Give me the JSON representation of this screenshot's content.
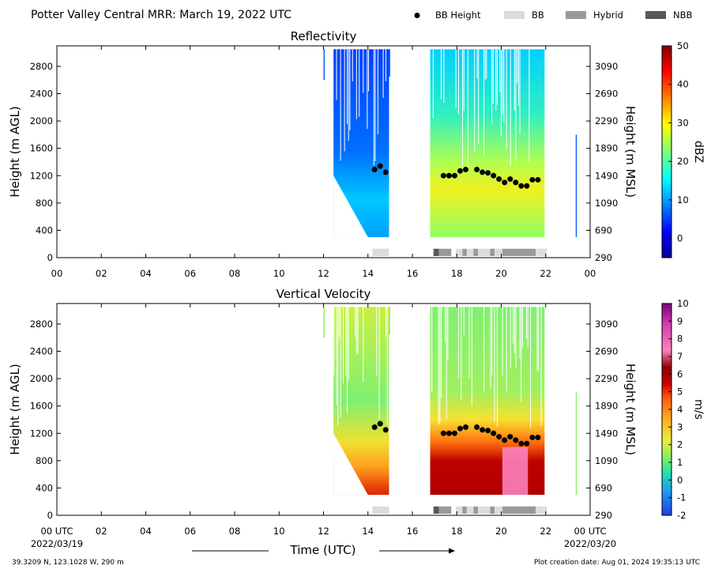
{
  "header": {
    "title": "Potter Valley Central MRR:  March 19, 2022 UTC",
    "legend": [
      {
        "label": "BB Height",
        "kind": "dot",
        "color": "#000000"
      },
      {
        "label": "BB",
        "kind": "bar",
        "color": "#dcdcdc"
      },
      {
        "label": "Hybrid",
        "kind": "bar",
        "color": "#999999"
      },
      {
        "label": "NBB",
        "kind": "bar",
        "color": "#595959"
      }
    ]
  },
  "footer": {
    "location": "39.3209 N, 123.1028 W, 290 m",
    "created": "Plot creation date: Aug 01, 2024 19:35:13 UTC",
    "xlabel": "Time (UTC)",
    "start_tick": "00 UTC",
    "start_date": "2022/03/19",
    "end_tick": "00 UTC",
    "end_date": "2022/03/20"
  },
  "chart_data": [
    {
      "type": "heatmap",
      "title": "Reflectivity",
      "ylabel": "Height (m AGL)",
      "ylabel_right": "Height (m MSL)",
      "xlim": [
        0,
        24
      ],
      "ylim": [
        0,
        3100
      ],
      "x_ticks": [
        "00",
        "02",
        "04",
        "06",
        "08",
        "10",
        "12",
        "14",
        "16",
        "18",
        "20",
        "22",
        "00"
      ],
      "y_ticks": [
        0,
        400,
        800,
        1200,
        1600,
        2000,
        2400,
        2800
      ],
      "y_ticks_right": [
        290,
        690,
        1090,
        1490,
        1890,
        2290,
        2690,
        3090
      ],
      "colorbar": {
        "label": "dBZ",
        "min": -5,
        "max": 50,
        "ticks": [
          0,
          10,
          20,
          30,
          40,
          50
        ],
        "colormap": "jet"
      },
      "bb_height": {
        "x": [
          14.3,
          14.55,
          14.8,
          17.4,
          17.65,
          17.9,
          18.15,
          18.4,
          18.9,
          19.15,
          19.4,
          19.65,
          19.9,
          20.15,
          20.4,
          20.65,
          20.9,
          21.15,
          21.4,
          21.65
        ],
        "y": [
          1290,
          1340,
          1250,
          1200,
          1200,
          1200,
          1270,
          1290,
          1290,
          1250,
          1240,
          1200,
          1150,
          1100,
          1150,
          1100,
          1050,
          1050,
          1140,
          1140
        ]
      },
      "bb_type_bar": [
        {
          "start": 14.2,
          "end": 14.95,
          "type": "BB"
        },
        {
          "start": 16.95,
          "end": 17.2,
          "type": "NBB"
        },
        {
          "start": 17.2,
          "end": 17.75,
          "type": "Hybrid"
        },
        {
          "start": 17.95,
          "end": 18.25,
          "type": "BB"
        },
        {
          "start": 18.25,
          "end": 18.45,
          "type": "Hybrid"
        },
        {
          "start": 18.45,
          "end": 18.75,
          "type": "BB"
        },
        {
          "start": 18.75,
          "end": 18.95,
          "type": "Hybrid"
        },
        {
          "start": 18.95,
          "end": 19.5,
          "type": "BB"
        },
        {
          "start": 19.5,
          "end": 19.7,
          "type": "Hybrid"
        },
        {
          "start": 19.7,
          "end": 20.05,
          "type": "BB"
        },
        {
          "start": 20.05,
          "end": 21.55,
          "type": "Hybrid"
        },
        {
          "start": 21.55,
          "end": 22.05,
          "type": "BB"
        }
      ],
      "data_segments": [
        {
          "start": 12.0,
          "end": 12.05,
          "bottom": 2600,
          "top": 3050,
          "value": 5
        },
        {
          "start": 12.45,
          "end": 14.95,
          "bottom": 300,
          "top": 3050,
          "value": 8
        },
        {
          "start": 14.95,
          "end": 15.0,
          "bottom": 2650,
          "top": 3050,
          "value": 5
        },
        {
          "start": 16.8,
          "end": 21.95,
          "bottom": 300,
          "top": 3050,
          "value": 18
        },
        {
          "start": 23.35,
          "end": 23.4,
          "bottom": 300,
          "top": 1800,
          "value": 5
        }
      ]
    },
    {
      "type": "heatmap",
      "title": "Vertical Velocity",
      "ylabel": "Height (m AGL)",
      "ylabel_right": "Height (m MSL)",
      "xlim": [
        0,
        24
      ],
      "ylim": [
        0,
        3100
      ],
      "x_ticks": [
        "",
        "02",
        "04",
        "06",
        "08",
        "10",
        "12",
        "14",
        "16",
        "18",
        "20",
        "22",
        ""
      ],
      "y_ticks": [
        0,
        400,
        800,
        1200,
        1600,
        2000,
        2400,
        2800
      ],
      "y_ticks_right": [
        290,
        690,
        1090,
        1490,
        1890,
        2290,
        2690,
        3090
      ],
      "colorbar": {
        "label": "m/s",
        "min": -2,
        "max": 10,
        "ticks": [
          -2,
          -1,
          0,
          1,
          2,
          3,
          4,
          5,
          6,
          7,
          8,
          9,
          10
        ],
        "colormap": "velocity"
      },
      "bb_height": {
        "x": [
          14.3,
          14.55,
          14.8,
          17.4,
          17.65,
          17.9,
          18.15,
          18.4,
          18.9,
          19.15,
          19.4,
          19.65,
          19.9,
          20.15,
          20.4,
          20.65,
          20.9,
          21.15,
          21.4,
          21.65
        ],
        "y": [
          1290,
          1340,
          1250,
          1200,
          1200,
          1200,
          1270,
          1290,
          1290,
          1250,
          1240,
          1200,
          1150,
          1100,
          1150,
          1100,
          1050,
          1050,
          1140,
          1140
        ]
      },
      "bb_type_bar": [
        {
          "start": 14.2,
          "end": 14.95,
          "type": "BB"
        },
        {
          "start": 16.95,
          "end": 17.2,
          "type": "NBB"
        },
        {
          "start": 17.2,
          "end": 17.75,
          "type": "Hybrid"
        },
        {
          "start": 17.95,
          "end": 18.25,
          "type": "BB"
        },
        {
          "start": 18.25,
          "end": 18.45,
          "type": "Hybrid"
        },
        {
          "start": 18.45,
          "end": 18.75,
          "type": "BB"
        },
        {
          "start": 18.75,
          "end": 18.95,
          "type": "Hybrid"
        },
        {
          "start": 18.95,
          "end": 19.5,
          "type": "BB"
        },
        {
          "start": 19.5,
          "end": 19.7,
          "type": "Hybrid"
        },
        {
          "start": 19.7,
          "end": 20.05,
          "type": "BB"
        },
        {
          "start": 20.05,
          "end": 21.55,
          "type": "Hybrid"
        },
        {
          "start": 21.55,
          "end": 22.05,
          "type": "BB"
        }
      ],
      "data_segments": [
        {
          "start": 12.0,
          "end": 12.05,
          "bottom": 2600,
          "top": 3050,
          "value": 1.5
        },
        {
          "start": 12.45,
          "end": 14.95,
          "bottom": 300,
          "top": 3050,
          "value": 2
        },
        {
          "start": 14.95,
          "end": 15.0,
          "bottom": 2650,
          "top": 3050,
          "value": 1.5
        },
        {
          "start": 16.8,
          "end": 21.95,
          "bottom": 300,
          "top": 3050,
          "value": 2
        },
        {
          "start": 23.35,
          "end": 23.4,
          "bottom": 300,
          "top": 1800,
          "value": 1.5
        }
      ]
    }
  ]
}
